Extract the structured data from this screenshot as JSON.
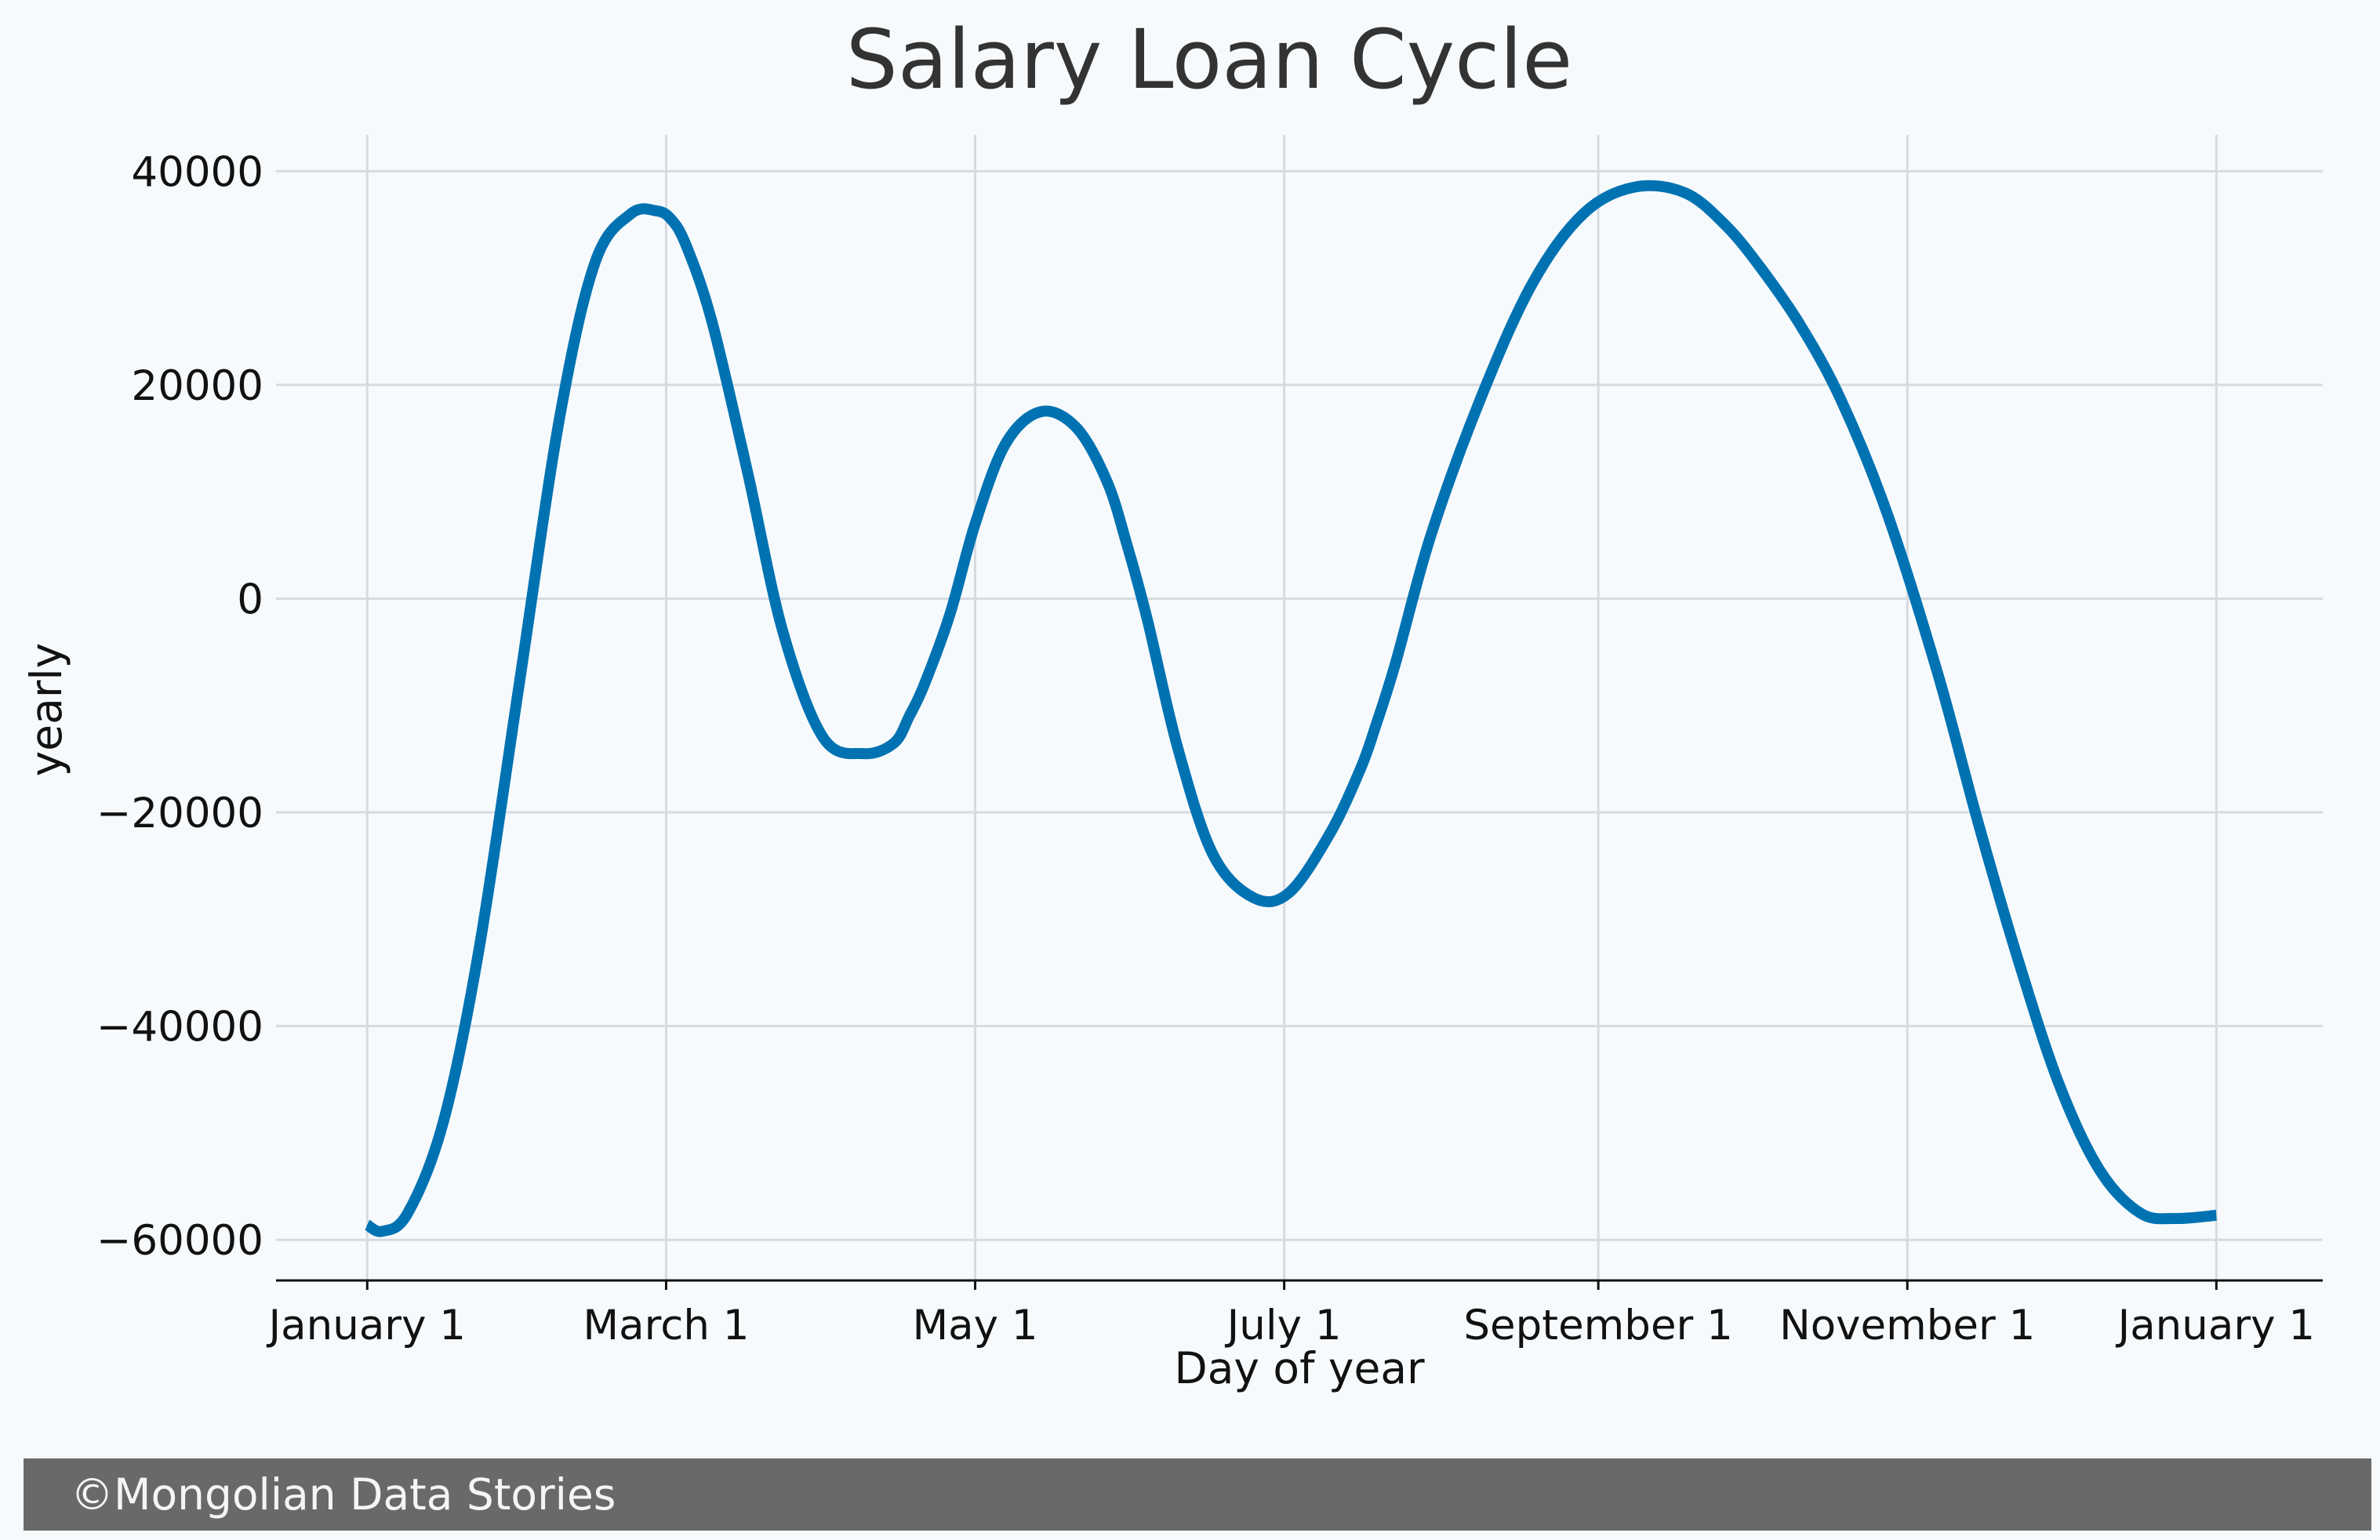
{
  "chart_data": {
    "type": "line",
    "title": "Salary Loan Cycle",
    "xlabel": "Day of year",
    "ylabel": "yearly",
    "x_ticks": [
      {
        "label": "January 1",
        "day": 0
      },
      {
        "label": "March 1",
        "day": 59
      },
      {
        "label": "May 1",
        "day": 120
      },
      {
        "label": "July 1",
        "day": 181
      },
      {
        "label": "September 1",
        "day": 243
      },
      {
        "label": "November 1",
        "day": 304
      },
      {
        "label": "January 1",
        "day": 365
      }
    ],
    "y_ticks": [
      40000,
      20000,
      0,
      -20000,
      -40000,
      -60000
    ],
    "y_tick_labels": [
      "40000",
      "20000",
      "0",
      "−20000",
      "−40000",
      "−60000"
    ],
    "xlim": [
      -18,
      386
    ],
    "ylim": [
      -63800,
      43400
    ],
    "grid": true,
    "series": [
      {
        "color": "#0072b2",
        "x": [
          0,
          3,
          8,
          15,
          22,
          30,
          38,
          45,
          52,
          57,
          60,
          63,
          68,
          75,
          82,
          90,
          98,
          104,
          107,
          110,
          115,
          120,
          126,
          133,
          140,
          146,
          150,
          154,
          160,
          167,
          175,
          182,
          190,
          196,
          199,
          203,
          210,
          220,
          230,
          240,
          250,
          260,
          268,
          275,
          283,
          291,
          300,
          310,
          318,
          326,
          334,
          342,
          350,
          357,
          365
        ],
        "y": [
          -58600,
          -59200,
          -57500,
          -49000,
          -33000,
          -8000,
          17000,
          31500,
          36000,
          36300,
          35500,
          33000,
          26000,
          12000,
          -3000,
          -13000,
          -14500,
          -13500,
          -11000,
          -8000,
          -1500,
          7000,
          14500,
          17500,
          16000,
          11000,
          5000,
          -2000,
          -14000,
          -24000,
          -28000,
          -27500,
          -22000,
          -16000,
          -12000,
          -6000,
          6000,
          19000,
          29500,
          36000,
          38500,
          38000,
          35000,
          31000,
          25500,
          18500,
          8000,
          -7000,
          -21000,
          -34000,
          -45500,
          -53500,
          -57500,
          -58000,
          -57700
        ]
      }
    ]
  },
  "footer": {
    "text": "©Mongolian Data Stories"
  }
}
